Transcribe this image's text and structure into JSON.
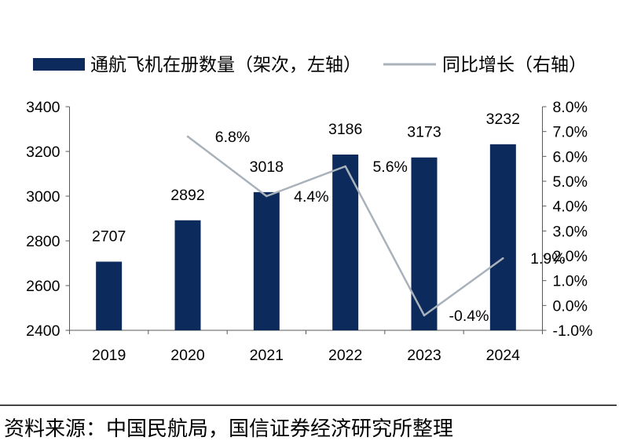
{
  "colors": {
    "bar": "#0c2a5b",
    "line": "#a9b2bb",
    "axis": "#595959",
    "text": "#000000",
    "background": "#ffffff"
  },
  "source_note": "资料来源：中国民航局，国信证券经济研究所整理",
  "chart_data": {
    "type": "bar",
    "legend_position": "top",
    "grid": false,
    "categories": [
      "2019",
      "2020",
      "2021",
      "2022",
      "2023",
      "2024"
    ],
    "series": [
      {
        "name": "通航飞机在册数量（架次，左轴）",
        "type": "bar",
        "axis": "left",
        "values": [
          2707,
          2892,
          3018,
          3186,
          3173,
          3232
        ]
      },
      {
        "name": "同比增长（右轴）",
        "type": "line",
        "axis": "right",
        "values": [
          null,
          6.8,
          4.4,
          5.6,
          -0.4,
          1.9
        ],
        "labels": [
          null,
          "6.8%",
          "4.4%",
          "5.6%",
          "-0.4%",
          "1.9%"
        ]
      }
    ],
    "left_axis": {
      "min": 2400,
      "max": 3400,
      "ticks": [
        {
          "value": 3400,
          "label": "3400"
        },
        {
          "value": 3200,
          "label": "3200"
        },
        {
          "value": 3000,
          "label": "3000"
        },
        {
          "value": 2800,
          "label": "2800"
        },
        {
          "value": 2600,
          "label": "2600"
        },
        {
          "value": 2400,
          "label": "2400"
        }
      ]
    },
    "right_axis": {
      "min": -1.0,
      "max": 8.0,
      "ticks": [
        {
          "value": 8.0,
          "label": "8.0%"
        },
        {
          "value": 7.0,
          "label": "7.0%"
        },
        {
          "value": 6.0,
          "label": "6.0%"
        },
        {
          "value": 5.0,
          "label": "5.0%"
        },
        {
          "value": 4.0,
          "label": "4.0%"
        },
        {
          "value": 3.0,
          "label": "3.0%"
        },
        {
          "value": 2.0,
          "label": "2.0%"
        },
        {
          "value": 1.0,
          "label": "1.0%"
        },
        {
          "value": 0.0,
          "label": "0.0%"
        },
        {
          "value": -1.0,
          "label": "-1.0%"
        }
      ]
    }
  }
}
